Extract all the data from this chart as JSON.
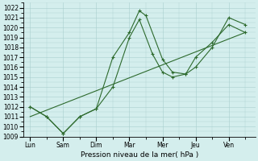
{
  "x_labels": [
    "Lun",
    "Sam",
    "Dim",
    "Mar",
    "Mer",
    "Jeu",
    "Ven"
  ],
  "x_ticks": [
    0,
    1,
    2,
    3,
    4,
    5,
    6
  ],
  "line1_x": [
    0,
    0.5,
    1.0,
    1.5,
    2.0,
    2.5,
    3.0,
    3.3,
    3.5,
    4.0,
    4.3,
    4.7,
    5.0,
    5.5,
    6.0,
    6.5
  ],
  "line1_y": [
    1012,
    1011,
    1009.3,
    1011.0,
    1011.8,
    1017.0,
    1019.5,
    1021.7,
    1021.2,
    1016.8,
    1015.5,
    1015.3,
    1016.0,
    1018.0,
    1021.0,
    1020.3
  ],
  "line2_x": [
    0,
    0.5,
    1.0,
    1.5,
    2.0,
    2.5,
    3.0,
    3.3,
    3.7,
    4.0,
    4.3,
    4.7,
    5.0,
    5.5,
    6.0,
    6.5
  ],
  "line2_y": [
    1012,
    1011,
    1009.3,
    1011.0,
    1011.8,
    1014.0,
    1019.0,
    1020.8,
    1017.3,
    1015.5,
    1015.0,
    1015.3,
    1017.0,
    1018.5,
    1020.3,
    1019.5
  ],
  "trend_x": [
    0,
    6.5
  ],
  "trend_y": [
    1011.0,
    1019.5
  ],
  "line_color": "#2d6a2d",
  "bg_color": "#d4eeed",
  "grid_color": "#a8cece",
  "xlabel": "Pression niveau de la mer( hPa )",
  "ylim": [
    1009,
    1022.5
  ],
  "yticks": [
    1009,
    1010,
    1011,
    1012,
    1013,
    1014,
    1015,
    1016,
    1017,
    1018,
    1019,
    1020,
    1021,
    1022
  ],
  "xlim": [
    -0.2,
    6.8
  ],
  "figsize": [
    3.2,
    2.0
  ],
  "dpi": 100
}
